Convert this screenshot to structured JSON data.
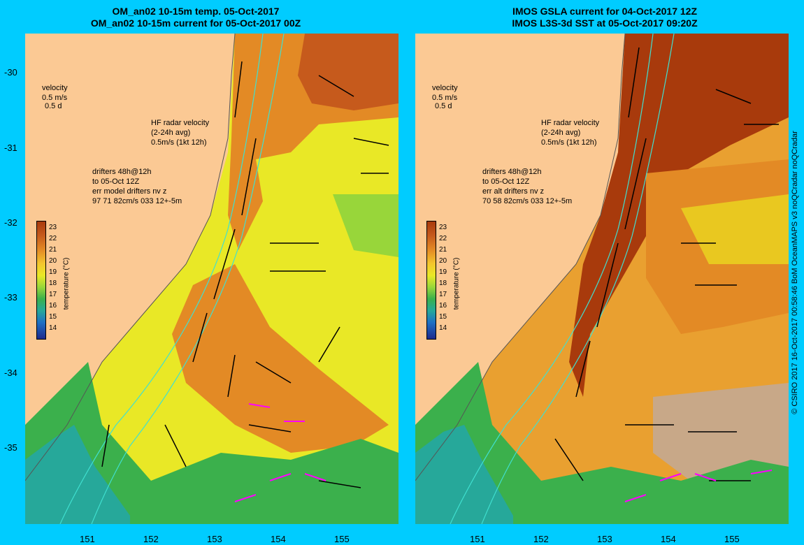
{
  "left_panel": {
    "title_line1": "OM_an02 10-15m temp. 05-Oct-2017",
    "title_line2": "OM_an02 10-15m current for 05-Oct-2017 00Z",
    "velocity_label": "velocity",
    "velocity_scale": "0.5 m/s",
    "velocity_days": "0.5 d",
    "hf_radar_line1": "HF radar velocity",
    "hf_radar_line2": "(2-24h avg)",
    "hf_radar_line3": "0.5m/s (1kt 12h)",
    "drifters_line1": "drifters 48h@12h",
    "drifters_line2": "to 05-Oct 12Z",
    "drifters_line3": "err model drifters nv z",
    "drifters_line4": "97 71 82cm/s 033 12+-5m"
  },
  "right_panel": {
    "title_line1": "IMOS GSLA current for 04-Oct-2017 12Z",
    "title_line2": "IMOS L3S-3d SST at 05-Oct-2017 09:20Z",
    "velocity_label": "velocity",
    "velocity_scale": "0.5 m/s",
    "velocity_days": "0.5 d",
    "hf_radar_line1": "HF radar velocity",
    "hf_radar_line2": "(2-24h avg)",
    "hf_radar_line3": "0.5m/s (1kt 12h)",
    "drifters_line1": "drifters 48h@12h",
    "drifters_line2": "to 05-Oct 12Z",
    "drifters_line3": "err alt drifters nv z",
    "drifters_line4": "70 58 82cm/s 033 12+-5m"
  },
  "colorbar": {
    "ticks": [
      "23",
      "22",
      "21",
      "20",
      "19",
      "18",
      "17",
      "16",
      "15",
      "14"
    ],
    "label": "temperature (°C)"
  },
  "y_ticks": [
    "-30",
    "-31",
    "-32",
    "-33",
    "-34",
    "-35"
  ],
  "x_ticks": [
    "151",
    "152",
    "153",
    "154",
    "155"
  ],
  "credit": "© CSIRO 2017   16-Oct-2017 00:58:46 BoM OceanMAPS v3 noQCradar noQCradar",
  "colors": {
    "background": "#00ccff",
    "land": "#fbc994",
    "warm": "#c65a1c",
    "hot": "#a83a0c",
    "mid": "#e9e826",
    "cool": "#3bb04c",
    "cold": "#26a89a",
    "hf_radar": "#ff00ff",
    "isobath": "#40e0d0",
    "no_data": "#c8a888"
  }
}
